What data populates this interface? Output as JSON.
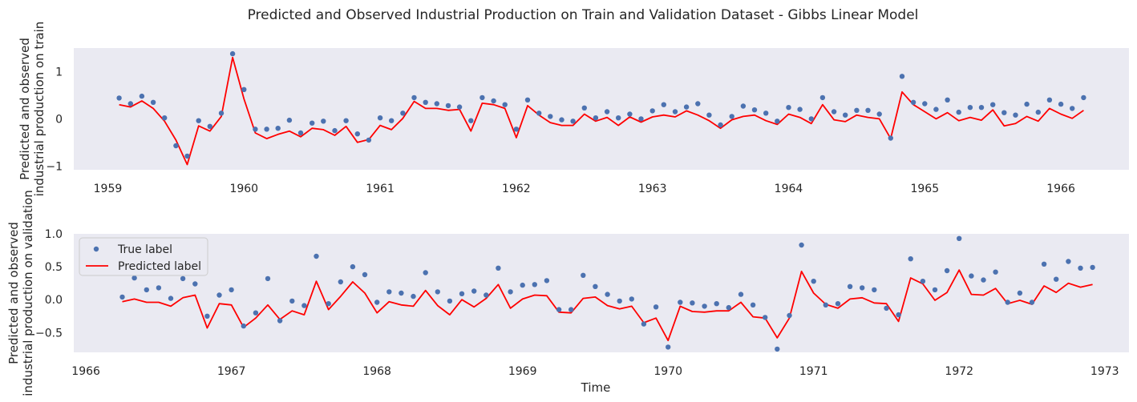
{
  "colors": {
    "panel_bg": "#eaeaf2",
    "true_marker": "#4c72b0",
    "pred_line": "#ff0000"
  },
  "figure_title": "Predicted and Observed Industrial Production on Train and Validation Dataset - Gibbs Linear Model",
  "chart_data": [
    {
      "type": "line",
      "ylabel": [
        "Predicted and observed",
        "industrial production on train"
      ],
      "xlabel": "",
      "x_axis": "date",
      "xlim": [
        "1958-10-01",
        "1966-07-01"
      ],
      "ylim": [
        -1.08,
        1.5
      ],
      "xticks": [
        "1959",
        "1960",
        "1961",
        "1962",
        "1963",
        "1964",
        "1965",
        "1966"
      ],
      "yticks": [
        -1,
        0,
        1
      ],
      "grid": false,
      "x": [
        "1959-02",
        "1959-03",
        "1959-04",
        "1959-05",
        "1959-06",
        "1959-07",
        "1959-08",
        "1959-09",
        "1959-10",
        "1959-11",
        "1959-12",
        "1960-01",
        "1960-02",
        "1960-03",
        "1960-04",
        "1960-05",
        "1960-06",
        "1960-07",
        "1960-08",
        "1960-09",
        "1960-10",
        "1960-11",
        "1960-12",
        "1961-01",
        "1961-02",
        "1961-03",
        "1961-04",
        "1961-05",
        "1961-06",
        "1961-07",
        "1961-08",
        "1961-09",
        "1961-10",
        "1961-11",
        "1961-12",
        "1962-01",
        "1962-02",
        "1962-03",
        "1962-04",
        "1962-05",
        "1962-06",
        "1962-07",
        "1962-08",
        "1962-09",
        "1962-10",
        "1962-11",
        "1962-12",
        "1963-01",
        "1963-02",
        "1963-03",
        "1963-04",
        "1963-05",
        "1963-06",
        "1963-07",
        "1963-08",
        "1963-09",
        "1963-10",
        "1963-11",
        "1963-12",
        "1964-01",
        "1964-02",
        "1964-03",
        "1964-04",
        "1964-05",
        "1964-06",
        "1964-07",
        "1964-08",
        "1964-09",
        "1964-10",
        "1964-11",
        "1964-12",
        "1965-01",
        "1965-02",
        "1965-03",
        "1965-04",
        "1965-05",
        "1965-06",
        "1965-07",
        "1965-08",
        "1965-09",
        "1965-10",
        "1965-11",
        "1965-12",
        "1966-01",
        "1966-02",
        "1966-03"
      ],
      "series": [
        {
          "name": "True label",
          "style": "scatter",
          "values": [
            0.44,
            0.32,
            0.48,
            0.35,
            0.02,
            -0.57,
            -0.79,
            -0.04,
            -0.16,
            0.12,
            1.38,
            0.62,
            -0.22,
            -0.22,
            -0.2,
            -0.03,
            -0.3,
            -0.09,
            -0.05,
            -0.25,
            -0.04,
            -0.32,
            -0.45,
            0.02,
            -0.04,
            0.12,
            0.45,
            0.35,
            0.32,
            0.28,
            0.25,
            -0.04,
            0.45,
            0.38,
            0.3,
            -0.22,
            0.4,
            0.12,
            0.05,
            -0.02,
            -0.05,
            0.23,
            0.02,
            0.15,
            0.02,
            0.1,
            0.0,
            0.17,
            0.3,
            0.15,
            0.25,
            0.32,
            0.08,
            -0.13,
            0.05,
            0.27,
            0.19,
            0.12,
            -0.05,
            0.24,
            0.2,
            0.0,
            0.45,
            0.15,
            0.08,
            0.18,
            0.18,
            0.1,
            -0.41,
            0.9,
            0.35,
            0.32,
            0.2,
            0.4,
            0.14,
            0.24,
            0.24,
            0.3,
            0.13,
            0.08,
            0.31,
            0.14,
            0.4,
            0.31,
            0.22,
            0.45
          ]
        },
        {
          "name": "Predicted label",
          "style": "line",
          "values": [
            0.3,
            0.25,
            0.38,
            0.22,
            -0.05,
            -0.45,
            -0.97,
            -0.15,
            -0.26,
            0.05,
            1.3,
            0.42,
            -0.3,
            -0.42,
            -0.33,
            -0.26,
            -0.38,
            -0.2,
            -0.23,
            -0.35,
            -0.16,
            -0.5,
            -0.44,
            -0.14,
            -0.23,
            0.01,
            0.37,
            0.22,
            0.22,
            0.18,
            0.2,
            -0.26,
            0.33,
            0.3,
            0.22,
            -0.4,
            0.28,
            0.08,
            -0.08,
            -0.14,
            -0.14,
            0.1,
            -0.05,
            0.03,
            -0.14,
            0.04,
            -0.07,
            0.04,
            0.08,
            0.04,
            0.17,
            0.08,
            -0.04,
            -0.2,
            -0.02,
            0.05,
            0.08,
            -0.04,
            -0.12,
            0.1,
            0.03,
            -0.1,
            0.3,
            -0.02,
            -0.06,
            0.08,
            0.03,
            0.0,
            -0.42,
            0.57,
            0.3,
            0.15,
            0.0,
            0.13,
            -0.04,
            0.03,
            -0.03,
            0.19,
            -0.15,
            -0.1,
            0.05,
            -0.05,
            0.22,
            0.1,
            0.01,
            0.18
          ]
        }
      ],
      "legend": null
    },
    {
      "type": "line",
      "ylabel": [
        "Predicted and observed",
        "industrial production on validation"
      ],
      "xlabel": "Time",
      "x_axis": "date",
      "xlim": [
        "1965-12-01",
        "1973-03-01"
      ],
      "ylim": [
        -0.8,
        1.0
      ],
      "xticks": [
        "1966",
        "1967",
        "1968",
        "1969",
        "1970",
        "1971",
        "1972",
        "1973"
      ],
      "yticks": [
        -0.5,
        0.0,
        0.5,
        1.0
      ],
      "grid": false,
      "x": [
        "1966-04",
        "1966-05",
        "1966-06",
        "1966-07",
        "1966-08",
        "1966-09",
        "1966-10",
        "1966-11",
        "1966-12",
        "1967-01",
        "1967-02",
        "1967-03",
        "1967-04",
        "1967-05",
        "1967-06",
        "1967-07",
        "1967-08",
        "1967-09",
        "1967-10",
        "1967-11",
        "1967-12",
        "1968-01",
        "1968-02",
        "1968-03",
        "1968-04",
        "1968-05",
        "1968-06",
        "1968-07",
        "1968-08",
        "1968-09",
        "1968-10",
        "1968-11",
        "1968-12",
        "1969-01",
        "1969-02",
        "1969-03",
        "1969-04",
        "1969-05",
        "1969-06",
        "1969-07",
        "1969-08",
        "1969-09",
        "1969-10",
        "1969-11",
        "1969-12",
        "1970-01",
        "1970-02",
        "1970-03",
        "1970-04",
        "1970-05",
        "1970-06",
        "1970-07",
        "1970-08",
        "1970-09",
        "1970-10",
        "1970-11",
        "1970-12",
        "1971-01",
        "1971-02",
        "1971-03",
        "1971-04",
        "1971-05",
        "1971-06",
        "1971-07",
        "1971-08",
        "1971-09",
        "1971-10",
        "1971-11",
        "1971-12",
        "1972-01",
        "1972-02",
        "1972-03",
        "1972-04",
        "1972-05",
        "1972-06",
        "1972-07",
        "1972-08",
        "1972-09",
        "1972-10",
        "1972-11",
        "1972-12"
      ],
      "series": [
        {
          "name": "True label",
          "style": "scatter",
          "values": [
            0.04,
            0.33,
            0.15,
            0.18,
            0.02,
            0.32,
            0.24,
            -0.25,
            0.07,
            0.15,
            -0.4,
            -0.2,
            0.32,
            -0.32,
            -0.02,
            -0.09,
            0.66,
            -0.06,
            0.27,
            0.5,
            0.38,
            -0.04,
            0.12,
            0.1,
            0.05,
            0.41,
            0.12,
            -0.02,
            0.09,
            0.13,
            0.07,
            0.48,
            0.12,
            0.22,
            0.23,
            0.29,
            -0.15,
            -0.15,
            0.37,
            0.2,
            0.08,
            -0.02,
            0.01,
            -0.37,
            -0.11,
            -0.72,
            -0.04,
            -0.05,
            -0.1,
            -0.06,
            -0.12,
            0.08,
            -0.08,
            -0.27,
            -0.75,
            -0.24,
            0.83,
            0.28,
            -0.08,
            -0.06,
            0.2,
            0.18,
            0.15,
            -0.13,
            -0.23,
            0.62,
            0.28,
            0.15,
            0.44,
            0.93,
            0.36,
            0.3,
            0.42,
            -0.04,
            0.1,
            -0.04,
            0.54,
            0.31,
            0.58,
            0.48,
            0.49
          ]
        },
        {
          "name": "Predicted label",
          "style": "line",
          "values": [
            -0.03,
            0.01,
            -0.04,
            -0.04,
            -0.1,
            0.03,
            0.07,
            -0.43,
            -0.06,
            -0.08,
            -0.42,
            -0.28,
            -0.08,
            -0.3,
            -0.17,
            -0.23,
            0.28,
            -0.15,
            0.05,
            0.27,
            0.1,
            -0.2,
            -0.03,
            -0.08,
            -0.1,
            0.14,
            -0.09,
            -0.23,
            0.0,
            -0.11,
            0.02,
            0.23,
            -0.13,
            0.01,
            0.07,
            0.06,
            -0.19,
            -0.2,
            0.02,
            0.04,
            -0.09,
            -0.14,
            -0.1,
            -0.35,
            -0.28,
            -0.62,
            -0.1,
            -0.18,
            -0.19,
            -0.17,
            -0.17,
            -0.04,
            -0.26,
            -0.28,
            -0.58,
            -0.28,
            0.43,
            0.1,
            -0.07,
            -0.13,
            0.01,
            0.03,
            -0.05,
            -0.06,
            -0.33,
            0.33,
            0.24,
            -0.01,
            0.11,
            0.45,
            0.08,
            0.07,
            0.17,
            -0.06,
            -0.01,
            -0.07,
            0.21,
            0.11,
            0.25,
            0.19,
            0.23
          ]
        }
      ],
      "legend": {
        "placement": "top-left",
        "entries": [
          "True label",
          "Predicted label"
        ]
      }
    }
  ]
}
